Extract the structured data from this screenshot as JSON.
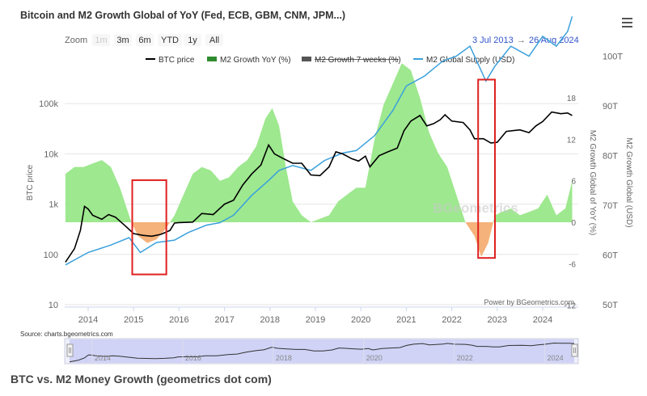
{
  "header": {
    "title": "Bitcoin and M2 Growth Global of YoY (Fed, ECB, GBM, CNM, JPM...)",
    "menu_icon": "hamburger-menu-icon"
  },
  "toolbar": {
    "zoom_label": "Zoom",
    "buttons": [
      "1m",
      "3m",
      "6m",
      "YTD",
      "1y",
      "All"
    ],
    "disabled": [
      "1m"
    ],
    "date_from": "3 Jul 2013",
    "date_arrow": "→",
    "date_to": "26 Aug 2024"
  },
  "legend": {
    "items": [
      {
        "label": "BTC price",
        "color": "#000000",
        "kind": "line"
      },
      {
        "label": "M2 Growth YoY (%)",
        "color": "#2e8b2e",
        "kind": "area"
      },
      {
        "label": "M2 Growth 7 weeks (%)",
        "color": "#555555",
        "kind": "area-struck"
      },
      {
        "label": "M2 Global Supply (USD)",
        "color": "#3aa0dc",
        "kind": "line"
      }
    ]
  },
  "watermark": "BGeometrics",
  "credit": "Power by BGeometrics.com",
  "source": "Source: charts.bgeometrics.com",
  "caption": "BTC vs. M2 Money Growth (geometrics dot com)",
  "colors": {
    "btc": "#000000",
    "m2_supply": "#3aa0dc",
    "growth_positive": "#9ee88f",
    "growth_negative": "#f5b27a",
    "highlight_box": "#e02020",
    "navigator_fill": "#c8ccf5"
  },
  "chart_data": {
    "type": "line",
    "x_axis": {
      "ticks": [
        "2014",
        "2015",
        "2016",
        "2017",
        "2018",
        "2019",
        "2020",
        "2021",
        "2022",
        "2023",
        "2024"
      ],
      "range": [
        "2013-07-03",
        "2024-08-26"
      ]
    },
    "y_axis_left": {
      "label": "BTC price",
      "scale": "log",
      "ticks": [
        "10",
        "100",
        "1k",
        "10k",
        "100k"
      ],
      "range": [
        10,
        300000
      ]
    },
    "y_axis_right_inner": {
      "label": "M2 Growth Global of YoY (%)",
      "ticks": [
        "-12",
        "-6",
        "0",
        "6",
        "12",
        "18"
      ],
      "range": [
        -12,
        24
      ]
    },
    "y_axis_right_outer": {
      "label": "M2 Growth Global (USD)",
      "ticks": [
        "50T",
        "60T",
        "70T",
        "80T",
        "90T",
        "100T"
      ],
      "range": [
        50,
        110
      ]
    },
    "series": [
      {
        "name": "BTC price",
        "axis": "left",
        "points": [
          [
            2013.5,
            70
          ],
          [
            2013.7,
            130
          ],
          [
            2013.83,
            300
          ],
          [
            2013.92,
            900
          ],
          [
            2014.0,
            800
          ],
          [
            2014.1,
            600
          ],
          [
            2014.3,
            500
          ],
          [
            2014.45,
            620
          ],
          [
            2014.6,
            550
          ],
          [
            2014.8,
            380
          ],
          [
            2015.0,
            260
          ],
          [
            2015.2,
            240
          ],
          [
            2015.4,
            230
          ],
          [
            2015.6,
            250
          ],
          [
            2015.8,
            300
          ],
          [
            2015.9,
            420
          ],
          [
            2016.0,
            430
          ],
          [
            2016.3,
            440
          ],
          [
            2016.5,
            650
          ],
          [
            2016.75,
            620
          ],
          [
            2017.0,
            1000
          ],
          [
            2017.2,
            1200
          ],
          [
            2017.4,
            2400
          ],
          [
            2017.6,
            4000
          ],
          [
            2017.8,
            6000
          ],
          [
            2017.97,
            15000
          ],
          [
            2018.1,
            10000
          ],
          [
            2018.3,
            8000
          ],
          [
            2018.5,
            6500
          ],
          [
            2018.7,
            6500
          ],
          [
            2018.9,
            3800
          ],
          [
            2019.1,
            3700
          ],
          [
            2019.3,
            5500
          ],
          [
            2019.45,
            11000
          ],
          [
            2019.6,
            10000
          ],
          [
            2019.8,
            8000
          ],
          [
            2019.95,
            7200
          ],
          [
            2020.1,
            9000
          ],
          [
            2020.2,
            5500
          ],
          [
            2020.4,
            9200
          ],
          [
            2020.6,
            11000
          ],
          [
            2020.8,
            13000
          ],
          [
            2020.95,
            29000
          ],
          [
            2021.1,
            45000
          ],
          [
            2021.3,
            58000
          ],
          [
            2021.45,
            36000
          ],
          [
            2021.6,
            40000
          ],
          [
            2021.75,
            48000
          ],
          [
            2021.85,
            60000
          ],
          [
            2022.0,
            45000
          ],
          [
            2022.25,
            42000
          ],
          [
            2022.4,
            30000
          ],
          [
            2022.5,
            20000
          ],
          [
            2022.7,
            20000
          ],
          [
            2022.86,
            16500
          ],
          [
            2023.0,
            17000
          ],
          [
            2023.2,
            28000
          ],
          [
            2023.5,
            30000
          ],
          [
            2023.7,
            26500
          ],
          [
            2023.85,
            36000
          ],
          [
            2024.0,
            44000
          ],
          [
            2024.2,
            68000
          ],
          [
            2024.4,
            63000
          ],
          [
            2024.55,
            65000
          ],
          [
            2024.65,
            58000
          ]
        ]
      },
      {
        "name": "M2 Growth YoY (%)",
        "axis": "right_inner",
        "points": [
          [
            2013.5,
            7
          ],
          [
            2013.7,
            8
          ],
          [
            2013.9,
            8
          ],
          [
            2014.1,
            8.5
          ],
          [
            2014.3,
            9
          ],
          [
            2014.5,
            8
          ],
          [
            2014.7,
            5
          ],
          [
            2014.85,
            2
          ],
          [
            2014.95,
            0
          ],
          [
            2015.1,
            -2
          ],
          [
            2015.3,
            -3
          ],
          [
            2015.5,
            -2.5
          ],
          [
            2015.7,
            -1
          ],
          [
            2015.9,
            1
          ],
          [
            2016.1,
            4
          ],
          [
            2016.3,
            7
          ],
          [
            2016.5,
            8
          ],
          [
            2016.7,
            7.5
          ],
          [
            2016.9,
            6
          ],
          [
            2017.1,
            6.5
          ],
          [
            2017.3,
            8
          ],
          [
            2017.5,
            9
          ],
          [
            2017.7,
            11
          ],
          [
            2017.9,
            15
          ],
          [
            2018.05,
            16.5
          ],
          [
            2018.2,
            14
          ],
          [
            2018.35,
            8
          ],
          [
            2018.5,
            3
          ],
          [
            2018.7,
            1
          ],
          [
            2018.9,
            0
          ],
          [
            2019.1,
            0.5
          ],
          [
            2019.3,
            1
          ],
          [
            2019.5,
            3
          ],
          [
            2019.7,
            4
          ],
          [
            2019.9,
            5
          ],
          [
            2020.1,
            5
          ],
          [
            2020.3,
            12
          ],
          [
            2020.5,
            17
          ],
          [
            2020.7,
            20
          ],
          [
            2020.9,
            23
          ],
          [
            2021.1,
            22
          ],
          [
            2021.3,
            18
          ],
          [
            2021.5,
            13
          ],
          [
            2021.7,
            10
          ],
          [
            2021.9,
            8
          ],
          [
            2022.1,
            4
          ],
          [
            2022.3,
            0
          ],
          [
            2022.5,
            -2
          ],
          [
            2022.65,
            -5
          ],
          [
            2022.8,
            -3
          ],
          [
            2022.95,
            1
          ],
          [
            2023.1,
            1.5
          ],
          [
            2023.3,
            2
          ],
          [
            2023.5,
            1
          ],
          [
            2023.7,
            1.5
          ],
          [
            2023.9,
            2
          ],
          [
            2024.1,
            4
          ],
          [
            2024.3,
            1
          ],
          [
            2024.5,
            2
          ],
          [
            2024.65,
            6
          ]
        ]
      },
      {
        "name": "M2 Global Supply (USD)",
        "axis": "right_outer",
        "points": [
          [
            2013.5,
            58
          ],
          [
            2014.0,
            60.5
          ],
          [
            2014.5,
            62
          ],
          [
            2014.9,
            63.5
          ],
          [
            2015.15,
            60.5
          ],
          [
            2015.5,
            62.5
          ],
          [
            2015.9,
            63
          ],
          [
            2016.2,
            64.5
          ],
          [
            2016.6,
            66
          ],
          [
            2016.9,
            66.5
          ],
          [
            2017.2,
            68
          ],
          [
            2017.6,
            72
          ],
          [
            2017.97,
            75
          ],
          [
            2018.2,
            77
          ],
          [
            2018.5,
            78
          ],
          [
            2018.9,
            77
          ],
          [
            2019.2,
            79
          ],
          [
            2019.6,
            80.5
          ],
          [
            2019.9,
            81
          ],
          [
            2020.3,
            84
          ],
          [
            2020.7,
            89
          ],
          [
            2021.0,
            94
          ],
          [
            2021.4,
            96
          ],
          [
            2021.8,
            99
          ],
          [
            2022.1,
            100
          ],
          [
            2022.4,
            102
          ],
          [
            2022.75,
            95
          ],
          [
            2022.95,
            98
          ],
          [
            2023.3,
            102
          ],
          [
            2023.7,
            100
          ],
          [
            2024.0,
            104
          ],
          [
            2024.3,
            102
          ],
          [
            2024.55,
            105
          ],
          [
            2024.65,
            108
          ]
        ]
      }
    ],
    "highlight_boxes": [
      {
        "x_start": 2014.97,
        "x_end": 2015.72,
        "y_max_btc": 3000,
        "y_min_btc": 40
      },
      {
        "x_start": 2022.58,
        "x_end": 2022.95,
        "y_max_btc": 300000,
        "y_min_btc": 85
      }
    ],
    "navigator": {
      "ticks": [
        "2014",
        "2016",
        "2018",
        "2020",
        "2022",
        "2024"
      ],
      "range": [
        "2013-07-03",
        "2024-08-26"
      ]
    }
  }
}
